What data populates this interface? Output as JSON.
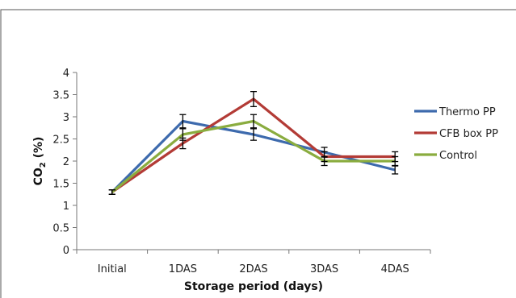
{
  "chart_data": {
    "type": "line",
    "title": "",
    "xlabel": "Storage period (days)",
    "ylabel_main": "CO",
    "ylabel_sub": "2",
    "ylabel_suffix": " (%)",
    "categories": [
      "Initial",
      "1DAS",
      "2DAS",
      "3DAS",
      "4DAS"
    ],
    "ylim": [
      0,
      4
    ],
    "yticks": [
      "0",
      "0.5",
      "1",
      "1.5",
      "2",
      "2.5",
      "3",
      "3.5",
      "4"
    ],
    "ytick_values": [
      0,
      0.5,
      1,
      1.5,
      2,
      2.5,
      3,
      3.5,
      4
    ],
    "grid": false,
    "legend_position": "right",
    "series": [
      {
        "name": "Thermo PP",
        "color": "#3d6aad",
        "values": [
          1.3,
          2.9,
          2.6,
          2.2,
          1.8
        ],
        "error": [
          0.05,
          0.15,
          0.13,
          0.11,
          0.09
        ]
      },
      {
        "name": "CFB box PP",
        "color": "#b33b36",
        "values": [
          1.3,
          2.4,
          3.4,
          2.1,
          2.1
        ],
        "error": [
          0.05,
          0.12,
          0.17,
          0.11,
          0.11
        ]
      },
      {
        "name": "Control",
        "color": "#8aac3f",
        "values": [
          1.3,
          2.6,
          2.9,
          2.0,
          2.0
        ],
        "error": [
          0.05,
          0.13,
          0.15,
          0.1,
          0.1
        ]
      }
    ]
  }
}
